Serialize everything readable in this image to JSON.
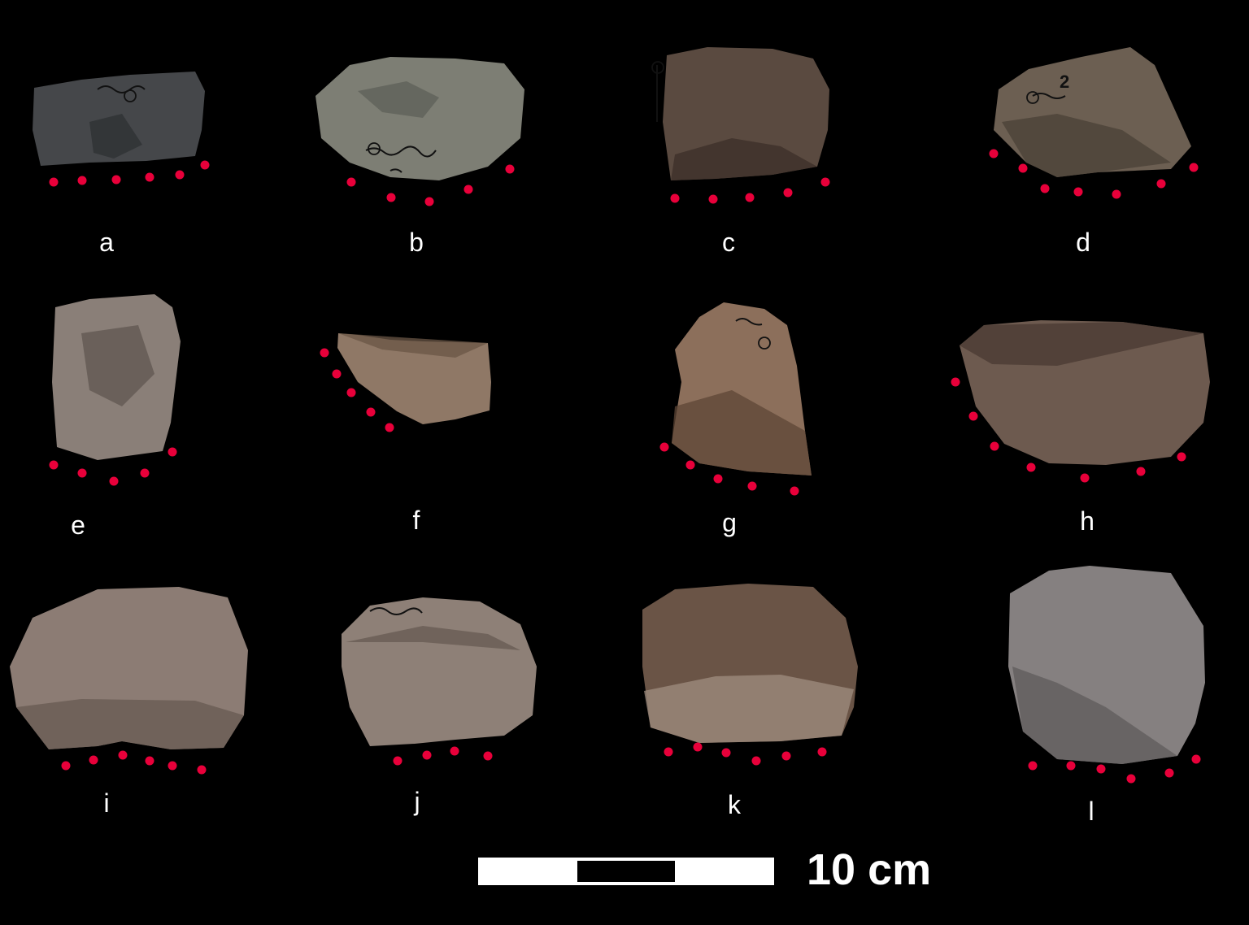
{
  "colors": {
    "background": "#000000",
    "dot": "#e8003a",
    "scale_light": "#ffffff",
    "scale_dark": "#000000"
  },
  "specimens": [
    {
      "label": "a",
      "annotation": "",
      "fill": "#45474a",
      "dark": "#2e3033",
      "dots": 6
    },
    {
      "label": "b",
      "annotation": "",
      "fill": "#7d7e74",
      "dark": "#5e6058",
      "dots": 5
    },
    {
      "label": "c",
      "annotation": "",
      "fill": "#5a4a40",
      "dark": "#3c2f28",
      "dots": 5
    },
    {
      "label": "d",
      "annotation": "2",
      "fill": "#6c5f52",
      "dark": "#4a4037",
      "dots": 7
    },
    {
      "label": "e",
      "annotation": "",
      "fill": "#8a7f78",
      "dark": "#5f5650",
      "dots": 5
    },
    {
      "label": "f",
      "annotation": "",
      "fill": "#8f7866",
      "dark": "#6a5646",
      "dots": 5
    },
    {
      "label": "g",
      "annotation": "",
      "fill": "#8c6f5b",
      "dark": "#5e4536",
      "dots": 5
    },
    {
      "label": "h",
      "annotation": "",
      "fill": "#6d5a4f",
      "dark": "#4a3a32",
      "dots": 7
    },
    {
      "label": "i",
      "annotation": "",
      "fill": "#8c7c74",
      "dark": "#675952",
      "dots": 6
    },
    {
      "label": "j",
      "annotation": "",
      "fill": "#8e8077",
      "dark": "#665a52",
      "dots": 4
    },
    {
      "label": "k",
      "annotation": "",
      "fill": "#6a5446",
      "dark": "#a08e80",
      "dots": 6
    },
    {
      "label": "l",
      "annotation": "",
      "fill": "#858080",
      "dark": "#5f5b5b",
      "dots": 6
    }
  ],
  "scale": {
    "label": "10 cm",
    "length_cm": 10,
    "segments": 3
  }
}
